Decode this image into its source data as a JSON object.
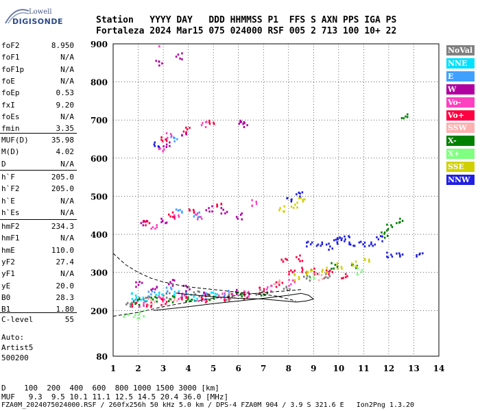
{
  "logo": {
    "top": "Lowell",
    "bottom": "DIGISONDE"
  },
  "header": {
    "line1": "Station   YYYY DAY   DDD HHMMSS P1  FFS S AXN PPS IGA PS",
    "line2": "Fortaleza 2024 Mar15 075 024000 RSF 005 2 713 100 10+ 22"
  },
  "params": {
    "group1": [
      {
        "k": "foF2",
        "v": "8.950"
      },
      {
        "k": "foF1",
        "v": "N/A"
      },
      {
        "k": "foF1p",
        "v": "N/A"
      },
      {
        "k": "foE",
        "v": "N/A"
      },
      {
        "k": "foEp",
        "v": "0.53"
      },
      {
        "k": "fxI",
        "v": "9.20"
      },
      {
        "k": "foEs",
        "v": "N/A"
      },
      {
        "k": "fmin",
        "v": "3.35"
      }
    ],
    "group2": [
      {
        "k": "MUF(D)",
        "v": "35.98"
      },
      {
        "k": "M(D)",
        "v": "4.02"
      },
      {
        "k": "D",
        "v": "N/A"
      }
    ],
    "group3": [
      {
        "k": "h`F",
        "v": "205.0"
      },
      {
        "k": "h`F2",
        "v": "205.0"
      },
      {
        "k": "h`E",
        "v": "N/A"
      },
      {
        "k": "h`Es",
        "v": "N/A"
      }
    ],
    "group4": [
      {
        "k": "hmF2",
        "v": "234.3"
      },
      {
        "k": "hmF1",
        "v": "N/A"
      },
      {
        "k": "hmE",
        "v": "110.0"
      },
      {
        "k": "yF2",
        "v": "27.4"
      },
      {
        "k": "yF1",
        "v": "N/A"
      },
      {
        "k": "yE",
        "v": "20.0"
      },
      {
        "k": "B0",
        "v": "28.3"
      },
      {
        "k": "B1",
        "v": "1.80"
      }
    ],
    "group5": [
      {
        "k": "C-level",
        "v": "55"
      }
    ]
  },
  "notes": {
    "auto": "Auto:",
    "artist": "Artist5",
    "version": "500200"
  },
  "footer": {
    "d_row": "D    100  200  400  600  800 1000 1500 3000 [km]",
    "muf_row": "MUF   9.3  9.5 10.1 11.1 12.5 14.5 20.4 36.0 [MHz]",
    "file_row": "FZA0M_2024075024000.RSF / 260fx256h 50 kHz 5.0 km / DPS-4 FZA0M 904 / 3.9 S 321.6 E   Ion2Png 1.3.20"
  },
  "legend": [
    {
      "label": "NoVal",
      "color": "#808080"
    },
    {
      "label": "NNE",
      "color": "#00e0ff"
    },
    {
      "label": "E",
      "color": "#40a0ff"
    },
    {
      "label": "W",
      "color": "#b000a0"
    },
    {
      "label": "Vo-",
      "color": "#ff40c0"
    },
    {
      "label": "Vo+",
      "color": "#ff0040"
    },
    {
      "label": "SSW",
      "color": "#ffb0b0"
    },
    {
      "label": "X-",
      "color": "#008000"
    },
    {
      "label": "X+",
      "color": "#80ff80"
    },
    {
      "label": "SSE",
      "color": "#d0d000"
    },
    {
      "label": "NNW",
      "color": "#2020e0"
    }
  ],
  "chart_data": {
    "type": "scatter",
    "xlabel": "",
    "ylabel": "",
    "xlim": [
      1,
      14
    ],
    "ylim": [
      80,
      900
    ],
    "xticks": [
      1,
      2,
      3,
      4,
      5,
      6,
      7,
      8,
      9,
      10,
      11,
      12,
      13,
      14
    ],
    "yticks": [
      80,
      200,
      300,
      400,
      500,
      600,
      700,
      800,
      900
    ],
    "grid": "dotted",
    "series": [
      {
        "name": "NNE",
        "color": "#00e0ff",
        "points": [
          [
            1.8,
            240
          ],
          [
            2.2,
            235
          ],
          [
            2.8,
            250
          ],
          [
            3.5,
            245
          ],
          [
            4.2,
            238
          ],
          [
            5.0,
            242
          ]
        ]
      },
      {
        "name": "E",
        "color": "#40a0ff",
        "points": [
          [
            1.9,
            235
          ],
          [
            2.5,
            245
          ],
          [
            3.2,
            255
          ],
          [
            3.8,
            250
          ],
          [
            4.6,
            240
          ],
          [
            5.5,
            248
          ],
          [
            3.6,
            460
          ],
          [
            4.3,
            455
          ],
          [
            3.4,
            650
          ]
        ]
      },
      {
        "name": "W",
        "color": "#b000a0",
        "points": [
          [
            2.0,
            270
          ],
          [
            2.6,
            265
          ],
          [
            3.3,
            275
          ],
          [
            3.9,
            260
          ],
          [
            4.7,
            250
          ],
          [
            5.8,
            252
          ],
          [
            2.2,
            430
          ],
          [
            3.0,
            440
          ],
          [
            4.8,
            470
          ],
          [
            5.4,
            465
          ],
          [
            6.0,
            450
          ],
          [
            3.1,
            640
          ],
          [
            3.8,
            670
          ],
          [
            6.2,
            690
          ],
          [
            6.1,
            700
          ],
          [
            2.8,
            850
          ],
          [
            3.6,
            870
          ]
        ]
      },
      {
        "name": "Vo-",
        "color": "#ff40c0",
        "points": [
          [
            2.1,
            220
          ],
          [
            2.9,
            230
          ],
          [
            3.7,
            240
          ],
          [
            4.5,
            235
          ],
          [
            5.3,
            240
          ],
          [
            6.3,
            245
          ],
          [
            7.2,
            260
          ],
          [
            8.1,
            275
          ],
          [
            2.6,
            425
          ],
          [
            3.5,
            445
          ],
          [
            4.4,
            450
          ],
          [
            6.6,
            485
          ],
          [
            2.9,
            620
          ],
          [
            3.2,
            660
          ],
          [
            4.6,
            690
          ],
          [
            2.8,
            895
          ]
        ]
      },
      {
        "name": "Vo+",
        "color": "#ff0040",
        "points": [
          [
            1.8,
            215
          ],
          [
            2.4,
            220
          ],
          [
            3.0,
            225
          ],
          [
            3.8,
            230
          ],
          [
            4.6,
            232
          ],
          [
            5.5,
            236
          ],
          [
            6.2,
            240
          ],
          [
            6.9,
            255
          ],
          [
            7.6,
            270
          ],
          [
            8.1,
            300
          ],
          [
            8.6,
            310
          ],
          [
            9.0,
            305
          ],
          [
            9.6,
            300
          ],
          [
            10.2,
            295
          ],
          [
            7.8,
            330
          ],
          [
            8.4,
            340
          ],
          [
            2.3,
            430
          ],
          [
            3.3,
            455
          ],
          [
            4.1,
            460
          ],
          [
            5.2,
            475
          ],
          [
            3.0,
            655
          ],
          [
            3.9,
            675
          ],
          [
            4.9,
            700
          ]
        ]
      },
      {
        "name": "SSW",
        "color": "#ffb0b0",
        "points": [
          [
            2.5,
            225
          ],
          [
            3.4,
            235
          ],
          [
            5.7,
            240
          ],
          [
            7.5,
            280
          ],
          [
            9.3,
            290
          ]
        ]
      },
      {
        "name": "X-",
        "color": "#008000",
        "points": [
          [
            1.9,
            225
          ],
          [
            2.6,
            230
          ],
          [
            3.3,
            232
          ],
          [
            4.0,
            235
          ],
          [
            4.9,
            238
          ],
          [
            6.0,
            242
          ],
          [
            7.0,
            250
          ],
          [
            9.8,
            320
          ],
          [
            10.6,
            315
          ],
          [
            11.8,
            400
          ],
          [
            12.0,
            420
          ],
          [
            12.4,
            440
          ],
          [
            12.6,
            715
          ]
        ]
      },
      {
        "name": "X+",
        "color": "#80ff80",
        "points": [
          [
            1.5,
            185
          ],
          [
            1.9,
            190
          ],
          [
            2.1,
            195
          ],
          [
            8.9,
            295
          ],
          [
            10.8,
            305
          ]
        ]
      },
      {
        "name": "SSE",
        "color": "#d0d000",
        "points": [
          [
            8.3,
            290
          ],
          [
            8.8,
            300
          ],
          [
            9.4,
            310
          ],
          [
            10.0,
            320
          ],
          [
            10.6,
            325
          ],
          [
            11.1,
            330
          ],
          [
            7.7,
            470
          ],
          [
            8.2,
            480
          ],
          [
            8.5,
            490
          ]
        ]
      },
      {
        "name": "NNW",
        "color": "#2020e0",
        "points": [
          [
            8.8,
            375
          ],
          [
            9.2,
            380
          ],
          [
            9.6,
            370
          ],
          [
            10.0,
            385
          ],
          [
            10.5,
            380
          ],
          [
            10.9,
            375
          ],
          [
            11.3,
            380
          ],
          [
            11.6,
            390
          ],
          [
            9.9,
            395
          ],
          [
            10.3,
            390
          ],
          [
            12.0,
            350
          ],
          [
            12.4,
            345
          ],
          [
            13.2,
            345
          ],
          [
            2.7,
            640
          ],
          [
            8.0,
            490
          ],
          [
            8.4,
            505
          ]
        ]
      },
      {
        "name": "NoVal",
        "color": "#808080",
        "points": [
          [
            1.6,
            215
          ],
          [
            2.3,
            230
          ],
          [
            3.1,
            240
          ],
          [
            4.3,
            245
          ],
          [
            5.6,
            238
          ],
          [
            6.8,
            252
          ],
          [
            7.9,
            265
          ],
          [
            8.7,
            285
          ],
          [
            9.5,
            295
          ]
        ]
      }
    ],
    "curves": [
      {
        "name": "",
        "style": "dashed",
        "points": [
          [
            1,
            350
          ],
          [
            1.5,
            320
          ],
          [
            2,
            300
          ],
          [
            2.5,
            285
          ],
          [
            3,
            275
          ],
          [
            3.5,
            268
          ],
          [
            4,
            262
          ],
          [
            5,
            255
          ],
          [
            6,
            248
          ],
          [
            7,
            242
          ],
          [
            7.5,
            238
          ],
          [
            8,
            230
          ],
          [
            8.3,
            225
          ]
        ]
      },
      {
        "name": "",
        "style": "dashed",
        "points": [
          [
            1,
            185
          ],
          [
            2,
            195
          ],
          [
            3,
            210
          ],
          [
            4,
            222
          ],
          [
            5,
            232
          ],
          [
            6,
            240
          ],
          [
            7,
            247
          ],
          [
            8,
            252
          ],
          [
            8.5,
            255
          ]
        ]
      },
      {
        "name": "",
        "style": "solid",
        "points": [
          [
            2.6,
            200
          ],
          [
            4,
            210
          ],
          [
            5,
            218
          ],
          [
            6,
            225
          ],
          [
            7,
            232
          ],
          [
            8,
            240
          ],
          [
            8.5,
            245
          ],
          [
            8.8,
            240
          ],
          [
            9,
            230
          ],
          [
            8.7,
            225
          ],
          [
            8.3,
            222
          ],
          [
            8,
            224
          ],
          [
            7,
            230
          ],
          [
            6,
            232
          ],
          [
            5,
            236
          ],
          [
            4,
            242
          ],
          [
            3.5,
            246
          ]
        ]
      }
    ]
  }
}
